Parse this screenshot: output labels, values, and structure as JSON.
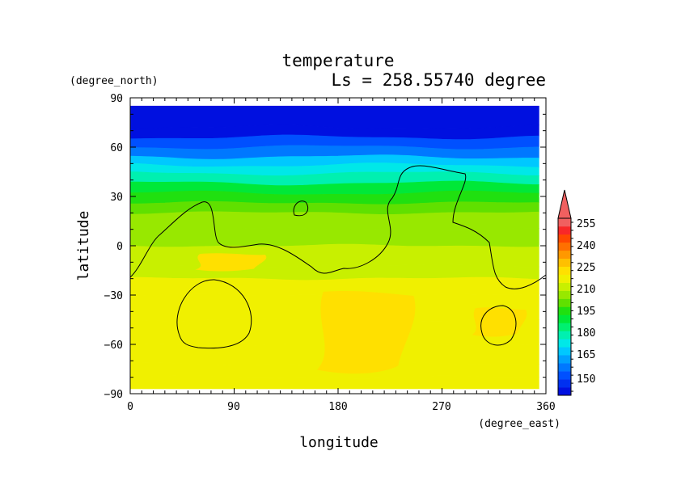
{
  "chart_data": {
    "type": "heatmap",
    "title": "temperature",
    "subtitle": "Ls = 258.55740 degree",
    "xlabel": "longitude",
    "ylabel": "latitude",
    "xunit": "(degree_east)",
    "yunit": "(degree_north)",
    "xlim": [
      0,
      360
    ],
    "ylim": [
      -90,
      90
    ],
    "data_lon_range": [
      0,
      354
    ],
    "data_lat_range": [
      -87,
      85
    ],
    "x_ticks": [
      "0",
      "90",
      "180",
      "270",
      "360"
    ],
    "y_ticks": [
      "90",
      "60",
      "30",
      "0",
      "−30",
      "−60",
      "−90"
    ],
    "colorbar": {
      "levels": [
        150,
        155,
        160,
        165,
        170,
        175,
        180,
        185,
        190,
        195,
        200,
        205,
        210,
        215,
        220,
        225,
        230,
        235,
        240,
        245,
        250,
        255
      ],
      "tick_labels": [
        "255",
        "240",
        "225",
        "210",
        "195",
        "180",
        "165",
        "150"
      ],
      "colors": [
        "#0010e0",
        "#0030f0",
        "#0050ff",
        "#0078ff",
        "#00a0ff",
        "#00c8ff",
        "#00e8e8",
        "#00f0b0",
        "#00f070",
        "#00e838",
        "#20e010",
        "#60e000",
        "#98e800",
        "#c8f000",
        "#f0f000",
        "#ffe000",
        "#ffc000",
        "#ff9800",
        "#ff7000",
        "#ff4800",
        "#f82828",
        "#f06060"
      ],
      "extend": "max"
    },
    "zonal_temperature": [
      [
        85,
        150
      ],
      [
        72,
        152
      ],
      [
        66,
        160
      ],
      [
        60,
        168
      ],
      [
        54,
        176
      ],
      [
        49,
        181
      ],
      [
        44,
        187
      ],
      [
        38,
        196
      ],
      [
        32,
        203
      ],
      [
        26,
        207
      ],
      [
        20,
        213
      ],
      [
        10,
        214
      ],
      [
        0,
        215
      ],
      [
        -12,
        218
      ],
      [
        -20,
        221
      ],
      [
        -30,
        223
      ],
      [
        -45,
        224
      ],
      [
        -60,
        224
      ],
      [
        -72,
        222
      ],
      [
        -80,
        222
      ],
      [
        -87,
        221
      ]
    ],
    "warm_regions": [
      {
        "temperature": 226,
        "lon": [
          55,
          120
        ],
        "lat": [
          -15,
          -5
        ]
      },
      {
        "temperature": 228,
        "lon": [
          160,
          250
        ],
        "lat": [
          -78,
          -28
        ]
      },
      {
        "temperature": 226,
        "lon": [
          295,
          345
        ],
        "lat": [
          -55,
          -38
        ]
      }
    ],
    "contour_line": "black contour overlay (topography)"
  }
}
